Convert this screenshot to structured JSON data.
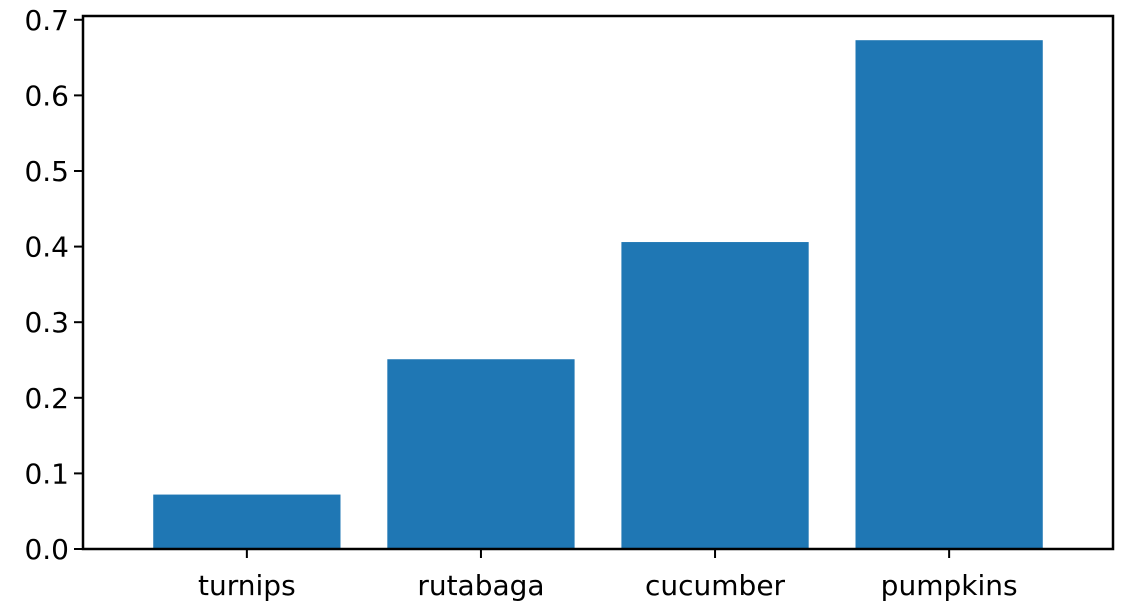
{
  "chart_data": {
    "type": "bar",
    "title": "",
    "xlabel": "",
    "ylabel": "",
    "categories": [
      "turnips",
      "rutabaga",
      "cucumber",
      "pumpkins"
    ],
    "values": [
      0.072,
      0.251,
      0.406,
      0.673
    ],
    "ylim": [
      0,
      0.705
    ],
    "yticks": [
      0.0,
      0.1,
      0.2,
      0.3,
      0.4,
      0.5,
      0.6,
      0.7
    ],
    "ytick_labels": [
      "0.0",
      "0.1",
      "0.2",
      "0.3",
      "0.4",
      "0.5",
      "0.6",
      "0.7"
    ],
    "grid": false,
    "bar_color": "#1f77b4"
  }
}
